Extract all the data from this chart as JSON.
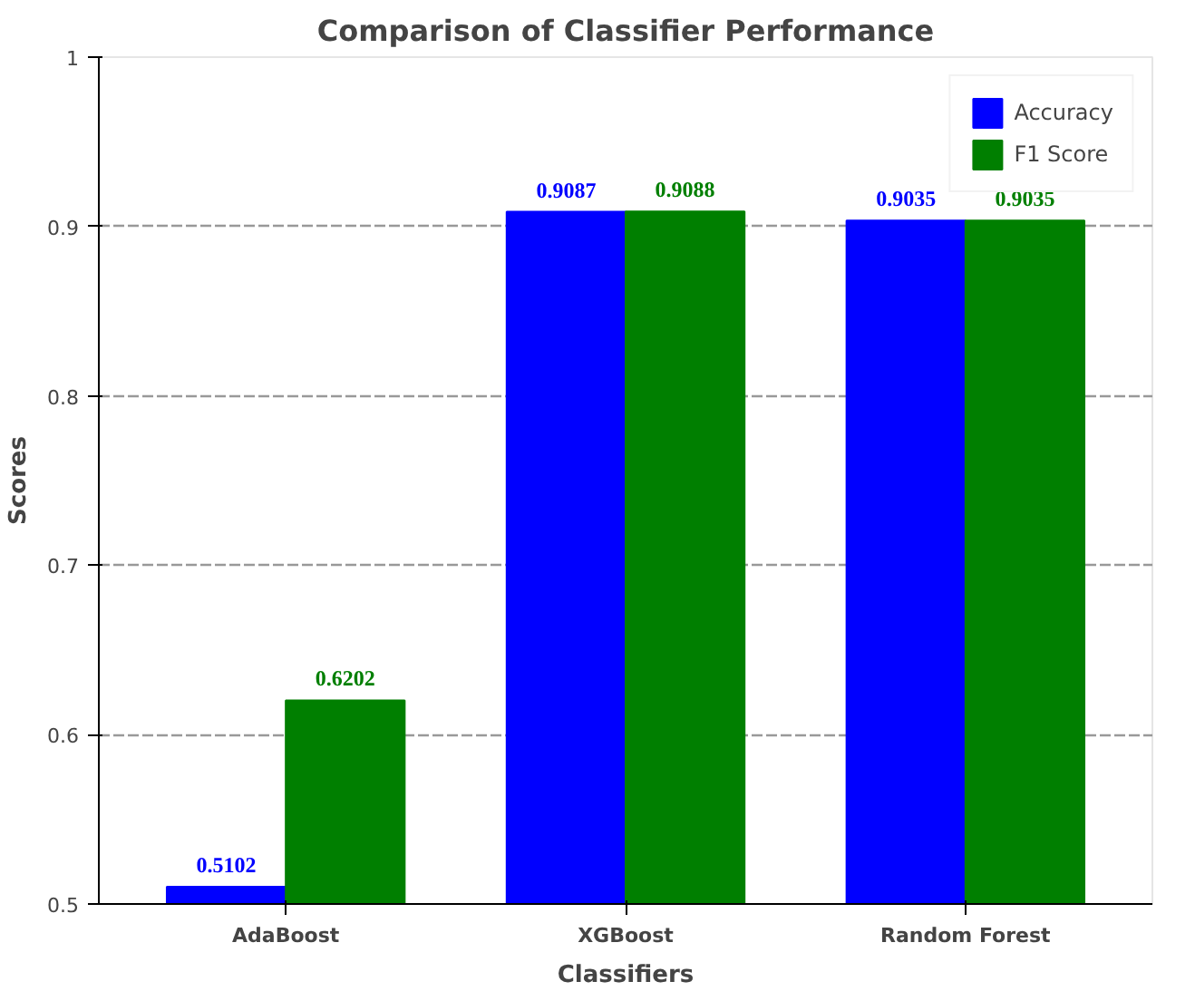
{
  "chart_data": {
    "type": "bar",
    "title": "Comparison of Classifier Performance",
    "xlabel": "Classifiers",
    "ylabel": "Scores",
    "categories": [
      "AdaBoost",
      "XGBoost",
      "Random Forest"
    ],
    "series": [
      {
        "name": "Accuracy",
        "color": "#0000ff",
        "values": [
          0.5102,
          0.9087,
          0.9035
        ]
      },
      {
        "name": "F1 Score",
        "color": "#007f00",
        "values": [
          0.6202,
          0.9088,
          0.9035
        ]
      }
    ],
    "ylim": [
      0.5,
      1.0
    ],
    "yticks": [
      0.5,
      0.6,
      0.7,
      0.8,
      0.9,
      1.0
    ],
    "grid": "y",
    "legend": "top right",
    "data_labels": true
  }
}
